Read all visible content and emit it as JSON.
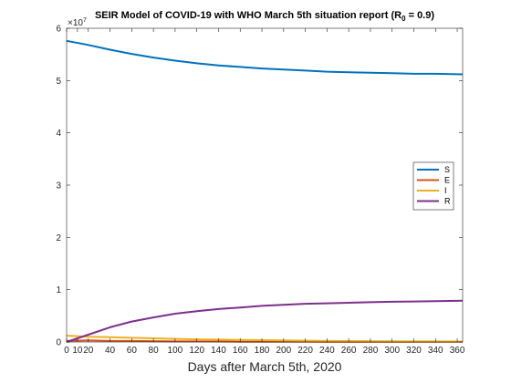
{
  "chart_data": {
    "type": "line",
    "title_main": "SEIR Model of COVID-19 with WHO March 5th situation report (R",
    "title_sub": "0",
    "title_tail": " = 0.9)",
    "xlabel": "Days after March 5th, 2020",
    "ylabel": "",
    "y_multiplier_base": "×10",
    "y_multiplier_exp": "7",
    "xlim": [
      0,
      365
    ],
    "ylim": [
      0,
      6
    ],
    "x_ticks": [
      0,
      10,
      20,
      40,
      60,
      80,
      100,
      120,
      140,
      160,
      180,
      200,
      220,
      240,
      260,
      280,
      300,
      320,
      340,
      360
    ],
    "y_ticks": [
      0,
      1,
      2,
      3,
      4,
      5,
      6
    ],
    "legend_position": "right",
    "grid": false,
    "x": [
      0,
      20,
      40,
      60,
      80,
      100,
      120,
      140,
      160,
      180,
      200,
      220,
      240,
      260,
      280,
      300,
      320,
      340,
      365
    ],
    "series": [
      {
        "name": "S",
        "color": "#0072BD",
        "values": [
          5.76,
          5.68,
          5.59,
          5.51,
          5.44,
          5.38,
          5.33,
          5.29,
          5.26,
          5.23,
          5.21,
          5.19,
          5.17,
          5.16,
          5.15,
          5.14,
          5.13,
          5.13,
          5.12
        ]
      },
      {
        "name": "E",
        "color": "#D95319",
        "values": [
          0.02,
          0.03,
          0.02,
          0.02,
          0.015,
          0.01,
          0.01,
          0.008,
          0.006,
          0.005,
          0.004,
          0.003,
          0.002,
          0.002,
          0.001,
          0.001,
          0.001,
          0.001,
          0.001
        ]
      },
      {
        "name": "I",
        "color": "#EDB120",
        "values": [
          0.12,
          0.1,
          0.09,
          0.08,
          0.07,
          0.06,
          0.05,
          0.045,
          0.04,
          0.035,
          0.03,
          0.025,
          0.02,
          0.018,
          0.015,
          0.013,
          0.011,
          0.01,
          0.008
        ]
      },
      {
        "name": "R",
        "color": "#7E2F8E",
        "values": [
          0.0,
          0.14,
          0.28,
          0.39,
          0.47,
          0.54,
          0.59,
          0.63,
          0.66,
          0.69,
          0.71,
          0.73,
          0.74,
          0.75,
          0.76,
          0.77,
          0.775,
          0.78,
          0.79
        ]
      }
    ]
  }
}
